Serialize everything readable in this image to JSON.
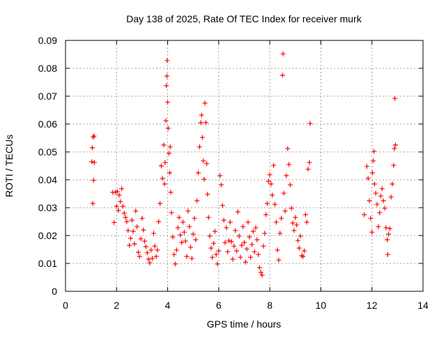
{
  "chart_data": {
    "type": "scatter",
    "title": "Day 138 of 2025, Rate Of TEC Index for receiver murk",
    "xlabel": "GPS time / hours",
    "ylabel": "ROTI / TECUs",
    "xlim": [
      0,
      14
    ],
    "ylim": [
      0,
      0.09
    ],
    "grid": true,
    "marker": "plus",
    "color": "#ff0000",
    "x_ticks": [
      "0",
      "2",
      "4",
      "6",
      "8",
      "10",
      "12",
      "14"
    ],
    "y_ticks": [
      "0",
      "0.01",
      "0.02",
      "0.03",
      "0.04",
      "0.05",
      "0.06",
      "0.07",
      "0.08",
      "0.09"
    ],
    "series": [
      {
        "points": [
          [
            1.03,
            0.0465
          ],
          [
            1.05,
            0.0515
          ],
          [
            1.07,
            0.0315
          ],
          [
            1.08,
            0.0553
          ],
          [
            1.1,
            0.0398
          ],
          [
            1.12,
            0.0557
          ],
          [
            1.13,
            0.0462
          ],
          [
            1.85,
            0.0355
          ],
          [
            1.9,
            0.0247
          ],
          [
            1.95,
            0.0355
          ],
          [
            2.0,
            0.0305
          ],
          [
            2.03,
            0.0358
          ],
          [
            2.07,
            0.029
          ],
          [
            2.1,
            0.0345
          ],
          [
            2.15,
            0.0322
          ],
          [
            2.2,
            0.0368
          ],
          [
            2.25,
            0.0305
          ],
          [
            2.3,
            0.028
          ],
          [
            2.35,
            0.0265
          ],
          [
            2.4,
            0.025
          ],
          [
            2.45,
            0.0218
          ],
          [
            2.5,
            0.0165
          ],
          [
            2.55,
            0.019
          ],
          [
            2.6,
            0.0255
          ],
          [
            2.65,
            0.0215
          ],
          [
            2.7,
            0.017
          ],
          [
            2.75,
            0.0288
          ],
          [
            2.8,
            0.0232
          ],
          [
            2.85,
            0.014
          ],
          [
            2.9,
            0.0125
          ],
          [
            2.95,
            0.0188
          ],
          [
            3.0,
            0.0262
          ],
          [
            3.05,
            0.022
          ],
          [
            3.1,
            0.018
          ],
          [
            3.15,
            0.016
          ],
          [
            3.2,
            0.0138
          ],
          [
            3.25,
            0.0115
          ],
          [
            3.3,
            0.0102
          ],
          [
            3.35,
            0.0148
          ],
          [
            3.4,
            0.0118
          ],
          [
            3.45,
            0.0208
          ],
          [
            3.5,
            0.0162
          ],
          [
            3.55,
            0.0125
          ],
          [
            3.6,
            0.0148
          ],
          [
            3.65,
            0.025
          ],
          [
            3.7,
            0.0315
          ],
          [
            3.75,
            0.045
          ],
          [
            3.8,
            0.0405
          ],
          [
            3.85,
            0.0525
          ],
          [
            3.88,
            0.0385
          ],
          [
            3.9,
            0.0462
          ],
          [
            3.93,
            0.0612
          ],
          [
            3.95,
            0.0738
          ],
          [
            3.97,
            0.0772
          ],
          [
            3.98,
            0.0828
          ],
          [
            4.0,
            0.0678
          ],
          [
            4.02,
            0.0585
          ],
          [
            4.05,
            0.0495
          ],
          [
            4.08,
            0.0425
          ],
          [
            4.1,
            0.0518
          ],
          [
            4.12,
            0.0355
          ],
          [
            4.15,
            0.0282
          ],
          [
            4.2,
            0.0195
          ],
          [
            4.25,
            0.0132
          ],
          [
            4.3,
            0.0098
          ],
          [
            4.35,
            0.0148
          ],
          [
            4.4,
            0.0228
          ],
          [
            4.45,
            0.0265
          ],
          [
            4.5,
            0.0202
          ],
          [
            4.55,
            0.0175
          ],
          [
            4.6,
            0.0248
          ],
          [
            4.65,
            0.0212
          ],
          [
            4.7,
            0.018
          ],
          [
            4.75,
            0.0125
          ],
          [
            4.8,
            0.0288
          ],
          [
            4.85,
            0.0232
          ],
          [
            4.9,
            0.0158
          ],
          [
            4.95,
            0.0118
          ],
          [
            5.0,
            0.0205
          ],
          [
            5.05,
            0.0262
          ],
          [
            5.1,
            0.0185
          ],
          [
            5.15,
            0.0325
          ],
          [
            5.2,
            0.0425
          ],
          [
            5.25,
            0.0518
          ],
          [
            5.3,
            0.0605
          ],
          [
            5.33,
            0.0632
          ],
          [
            5.36,
            0.0552
          ],
          [
            5.4,
            0.0468
          ],
          [
            5.43,
            0.0402
          ],
          [
            5.46,
            0.0675
          ],
          [
            5.5,
            0.0605
          ],
          [
            5.53,
            0.0458
          ],
          [
            5.56,
            0.0348
          ],
          [
            5.6,
            0.0265
          ],
          [
            5.65,
            0.0198
          ],
          [
            5.7,
            0.0155
          ],
          [
            5.75,
            0.0122
          ],
          [
            5.8,
            0.0172
          ],
          [
            5.85,
            0.0215
          ],
          [
            5.9,
            0.0132
          ],
          [
            5.95,
            0.0098
          ],
          [
            6.0,
            0.0145
          ],
          [
            6.05,
            0.0415
          ],
          [
            6.1,
            0.0382
          ],
          [
            6.15,
            0.0308
          ],
          [
            6.2,
            0.0255
          ],
          [
            6.25,
            0.0175
          ],
          [
            6.3,
            0.0228
          ],
          [
            6.35,
            0.0142
          ],
          [
            6.4,
            0.0182
          ],
          [
            6.45,
            0.0248
          ],
          [
            6.5,
            0.0178
          ],
          [
            6.55,
            0.0115
          ],
          [
            6.6,
            0.0162
          ],
          [
            6.65,
            0.0218
          ],
          [
            6.7,
            0.0145
          ],
          [
            6.75,
            0.0285
          ],
          [
            6.8,
            0.0198
          ],
          [
            6.85,
            0.0122
          ],
          [
            6.9,
            0.0165
          ],
          [
            6.95,
            0.0232
          ],
          [
            7.0,
            0.0175
          ],
          [
            7.05,
            0.0105
          ],
          [
            7.1,
            0.0152
          ],
          [
            7.15,
            0.0248
          ],
          [
            7.2,
            0.0195
          ],
          [
            7.25,
            0.0122
          ],
          [
            7.3,
            0.0168
          ],
          [
            7.35,
            0.0215
          ],
          [
            7.4,
            0.0142
          ],
          [
            7.45,
            0.0228
          ],
          [
            7.5,
            0.0185
          ],
          [
            7.55,
            0.0132
          ],
          [
            7.6,
            0.0085
          ],
          [
            7.65,
            0.0068
          ],
          [
            7.7,
            0.0058
          ],
          [
            7.75,
            0.0162
          ],
          [
            7.8,
            0.0208
          ],
          [
            7.85,
            0.0275
          ],
          [
            7.9,
            0.0315
          ],
          [
            7.95,
            0.0395
          ],
          [
            8.0,
            0.0418
          ],
          [
            8.05,
            0.0385
          ],
          [
            8.1,
            0.0345
          ],
          [
            8.15,
            0.0452
          ],
          [
            8.2,
            0.0312
          ],
          [
            8.25,
            0.0248
          ],
          [
            8.3,
            0.0148
          ],
          [
            8.35,
            0.0112
          ],
          [
            8.4,
            0.0208
          ],
          [
            8.45,
            0.0262
          ],
          [
            8.5,
            0.0775
          ],
          [
            8.52,
            0.0852
          ],
          [
            8.55,
            0.0352
          ],
          [
            8.6,
            0.0288
          ],
          [
            8.65,
            0.0415
          ],
          [
            8.7,
            0.0512
          ],
          [
            8.75,
            0.0455
          ],
          [
            8.8,
            0.0382
          ],
          [
            8.85,
            0.0298
          ],
          [
            8.9,
            0.0245
          ],
          [
            8.95,
            0.0218
          ],
          [
            9.0,
            0.0265
          ],
          [
            9.05,
            0.0238
          ],
          [
            9.1,
            0.0182
          ],
          [
            9.15,
            0.0155
          ],
          [
            9.2,
            0.0198
          ],
          [
            9.25,
            0.0128
          ],
          [
            9.3,
            0.0125
          ],
          [
            9.35,
            0.0145
          ],
          [
            9.4,
            0.0275
          ],
          [
            9.45,
            0.0248
          ],
          [
            9.5,
            0.0438
          ],
          [
            9.55,
            0.0462
          ],
          [
            9.58,
            0.0602
          ],
          [
            11.7,
            0.0275
          ],
          [
            11.8,
            0.0448
          ],
          [
            11.85,
            0.0405
          ],
          [
            11.9,
            0.0325
          ],
          [
            11.95,
            0.0262
          ],
          [
            12.0,
            0.0212
          ],
          [
            12.02,
            0.0425
          ],
          [
            12.05,
            0.0468
          ],
          [
            12.08,
            0.0502
          ],
          [
            12.1,
            0.0385
          ],
          [
            12.15,
            0.0352
          ],
          [
            12.2,
            0.0312
          ],
          [
            12.25,
            0.0232
          ],
          [
            12.3,
            0.0282
          ],
          [
            12.35,
            0.0342
          ],
          [
            12.4,
            0.0368
          ],
          [
            12.45,
            0.0325
          ],
          [
            12.5,
            0.0298
          ],
          [
            12.55,
            0.0228
          ],
          [
            12.6,
            0.0185
          ],
          [
            12.62,
            0.0132
          ],
          [
            12.65,
            0.0205
          ],
          [
            12.7,
            0.0225
          ],
          [
            12.75,
            0.0338
          ],
          [
            12.8,
            0.0385
          ],
          [
            12.85,
            0.0452
          ],
          [
            12.88,
            0.0512
          ],
          [
            12.9,
            0.0692
          ],
          [
            12.92,
            0.0525
          ]
        ]
      }
    ]
  }
}
